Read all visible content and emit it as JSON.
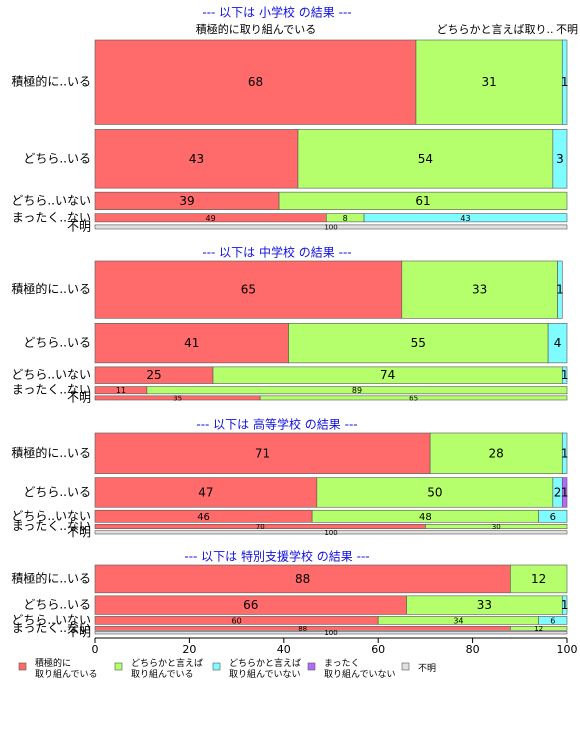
{
  "chart_data": {
    "type": "bar",
    "orientation": "horizontal",
    "stacked": true,
    "variable_width": true,
    "xlim": [
      0,
      100
    ],
    "x_ticks": [
      "0",
      "20",
      "40",
      "60",
      "80",
      "100"
    ],
    "categories": [
      "積極的に取り組んでいる",
      "どちらかと言えば取り組んでいる",
      "どちらかと言えば取り組んでいない",
      "まったく取り組んでいない",
      "不明"
    ],
    "top_labels": [
      "積極的に取り組んでいる",
      "どちらかと言えば取り..",
      "不明"
    ],
    "colors": [
      "#ff6b6b",
      "#b4ff6b",
      "#7ffcff",
      "#b36bff",
      "#e0e0e0"
    ],
    "legend": [
      {
        "line1": "積極的に",
        "line2": "取り組んでいる"
      },
      {
        "line1": "どちらかと言えば",
        "line2": "取り組んでいる"
      },
      {
        "line1": "どちらかと言えば",
        "line2": "取り組んでいない"
      },
      {
        "line1": "まったく",
        "line2": "取り組んでいない"
      },
      {
        "line1": "不明",
        "line2": ""
      }
    ],
    "groups": [
      {
        "title": "--- 以下は 小学校 の結果 ---",
        "rows": [
          {
            "label": "積極的に..いる",
            "weight": 82,
            "values": [
              68,
              31,
              1,
              0,
              0
            ],
            "labels": [
              "68",
              "31",
              "1",
              "",
              ""
            ]
          },
          {
            "label": "どちら..いる",
            "weight": 57,
            "values": [
              43,
              54,
              3,
              0,
              0
            ],
            "labels": [
              "43",
              "54",
              "3",
              "",
              ""
            ]
          },
          {
            "label": "どちら..いない",
            "weight": 17,
            "values": [
              39,
              61,
              0,
              0,
              0
            ],
            "labels": [
              "39",
              "61",
              "",
              "",
              ""
            ]
          },
          {
            "label": "まったく..ない",
            "weight": 8,
            "values": [
              49,
              8,
              43,
              0,
              0
            ],
            "labels": [
              "49",
              "8",
              "43",
              "",
              ""
            ]
          },
          {
            "label": "不明",
            "weight": 4,
            "values": [
              0,
              0,
              0,
              0,
              100
            ],
            "labels": [
              "",
              "",
              "",
              "",
              "100"
            ]
          }
        ]
      },
      {
        "title": "--- 以下は 中学校 の結果 ---",
        "rows": [
          {
            "label": "積極的に..いる",
            "weight": 55,
            "values": [
              65,
              33,
              1,
              0,
              0
            ],
            "labels": [
              "65",
              "33",
              "1",
              "",
              ""
            ]
          },
          {
            "label": "どちら..いる",
            "weight": 38,
            "values": [
              41,
              55,
              4,
              0,
              0
            ],
            "labels": [
              "41",
              "55",
              "4",
              "",
              ""
            ]
          },
          {
            "label": "どちら..いない",
            "weight": 16,
            "values": [
              25,
              74,
              1,
              0,
              0
            ],
            "labels": [
              "25",
              "74",
              "1",
              "",
              ""
            ]
          },
          {
            "label": "まったく..ない",
            "weight": 7,
            "values": [
              11,
              89,
              0,
              0,
              0
            ],
            "labels": [
              "11",
              "89",
              "",
              "",
              ""
            ]
          },
          {
            "label": "不明",
            "weight": 4,
            "values": [
              35,
              65,
              0,
              0,
              0
            ],
            "labels": [
              "35",
              "65",
              "",
              "",
              ""
            ]
          }
        ]
      },
      {
        "title": "--- 以下は 高等学校 の結果 ---",
        "rows": [
          {
            "label": "積極的に..いる",
            "weight": 37,
            "values": [
              71,
              28,
              1,
              0,
              0
            ],
            "labels": [
              "71",
              "28",
              "1",
              "",
              ""
            ]
          },
          {
            "label": "どちら..いる",
            "weight": 27,
            "values": [
              47,
              50,
              2,
              1,
              0
            ],
            "labels": [
              "47",
              "50",
              "2",
              "1",
              ""
            ]
          },
          {
            "label": "どちら..いない",
            "weight": 11,
            "values": [
              46,
              48,
              6,
              0,
              0
            ],
            "labels": [
              "46",
              "48",
              "6",
              "",
              ""
            ]
          },
          {
            "label": "まったく..ない",
            "weight": 4,
            "values": [
              70,
              30,
              0,
              0,
              0
            ],
            "labels": [
              "70",
              "30",
              "",
              "",
              ""
            ]
          },
          {
            "label": "不明",
            "weight": 3,
            "values": [
              0,
              0,
              0,
              0,
              100
            ],
            "labels": [
              "",
              "",
              "",
              "",
              "100"
            ]
          }
        ]
      },
      {
        "title": "--- 以下は 特別支援学校 の結果 ---",
        "rows": [
          {
            "label": "積極的に..いる",
            "weight": 21,
            "values": [
              88,
              12,
              0,
              0,
              0
            ],
            "labels": [
              "88",
              "12",
              "",
              "",
              ""
            ]
          },
          {
            "label": "どちら..いる",
            "weight": 14,
            "values": [
              66,
              33,
              1,
              0,
              0
            ],
            "labels": [
              "66",
              "33",
              "1",
              "",
              ""
            ]
          },
          {
            "label": "どちら..いない",
            "weight": 6,
            "values": [
              60,
              34,
              6,
              0,
              0
            ],
            "labels": [
              "60",
              "34",
              "6",
              "",
              ""
            ]
          },
          {
            "label": "まったく..ない",
            "weight": 3,
            "values": [
              88,
              12,
              0,
              0,
              0
            ],
            "labels": [
              "88",
              "12",
              "",
              "",
              ""
            ]
          },
          {
            "label": "不明",
            "weight": 2,
            "values": [
              0,
              0,
              0,
              0,
              100
            ],
            "labels": [
              "",
              "",
              "",
              "",
              "100"
            ]
          }
        ]
      }
    ]
  }
}
